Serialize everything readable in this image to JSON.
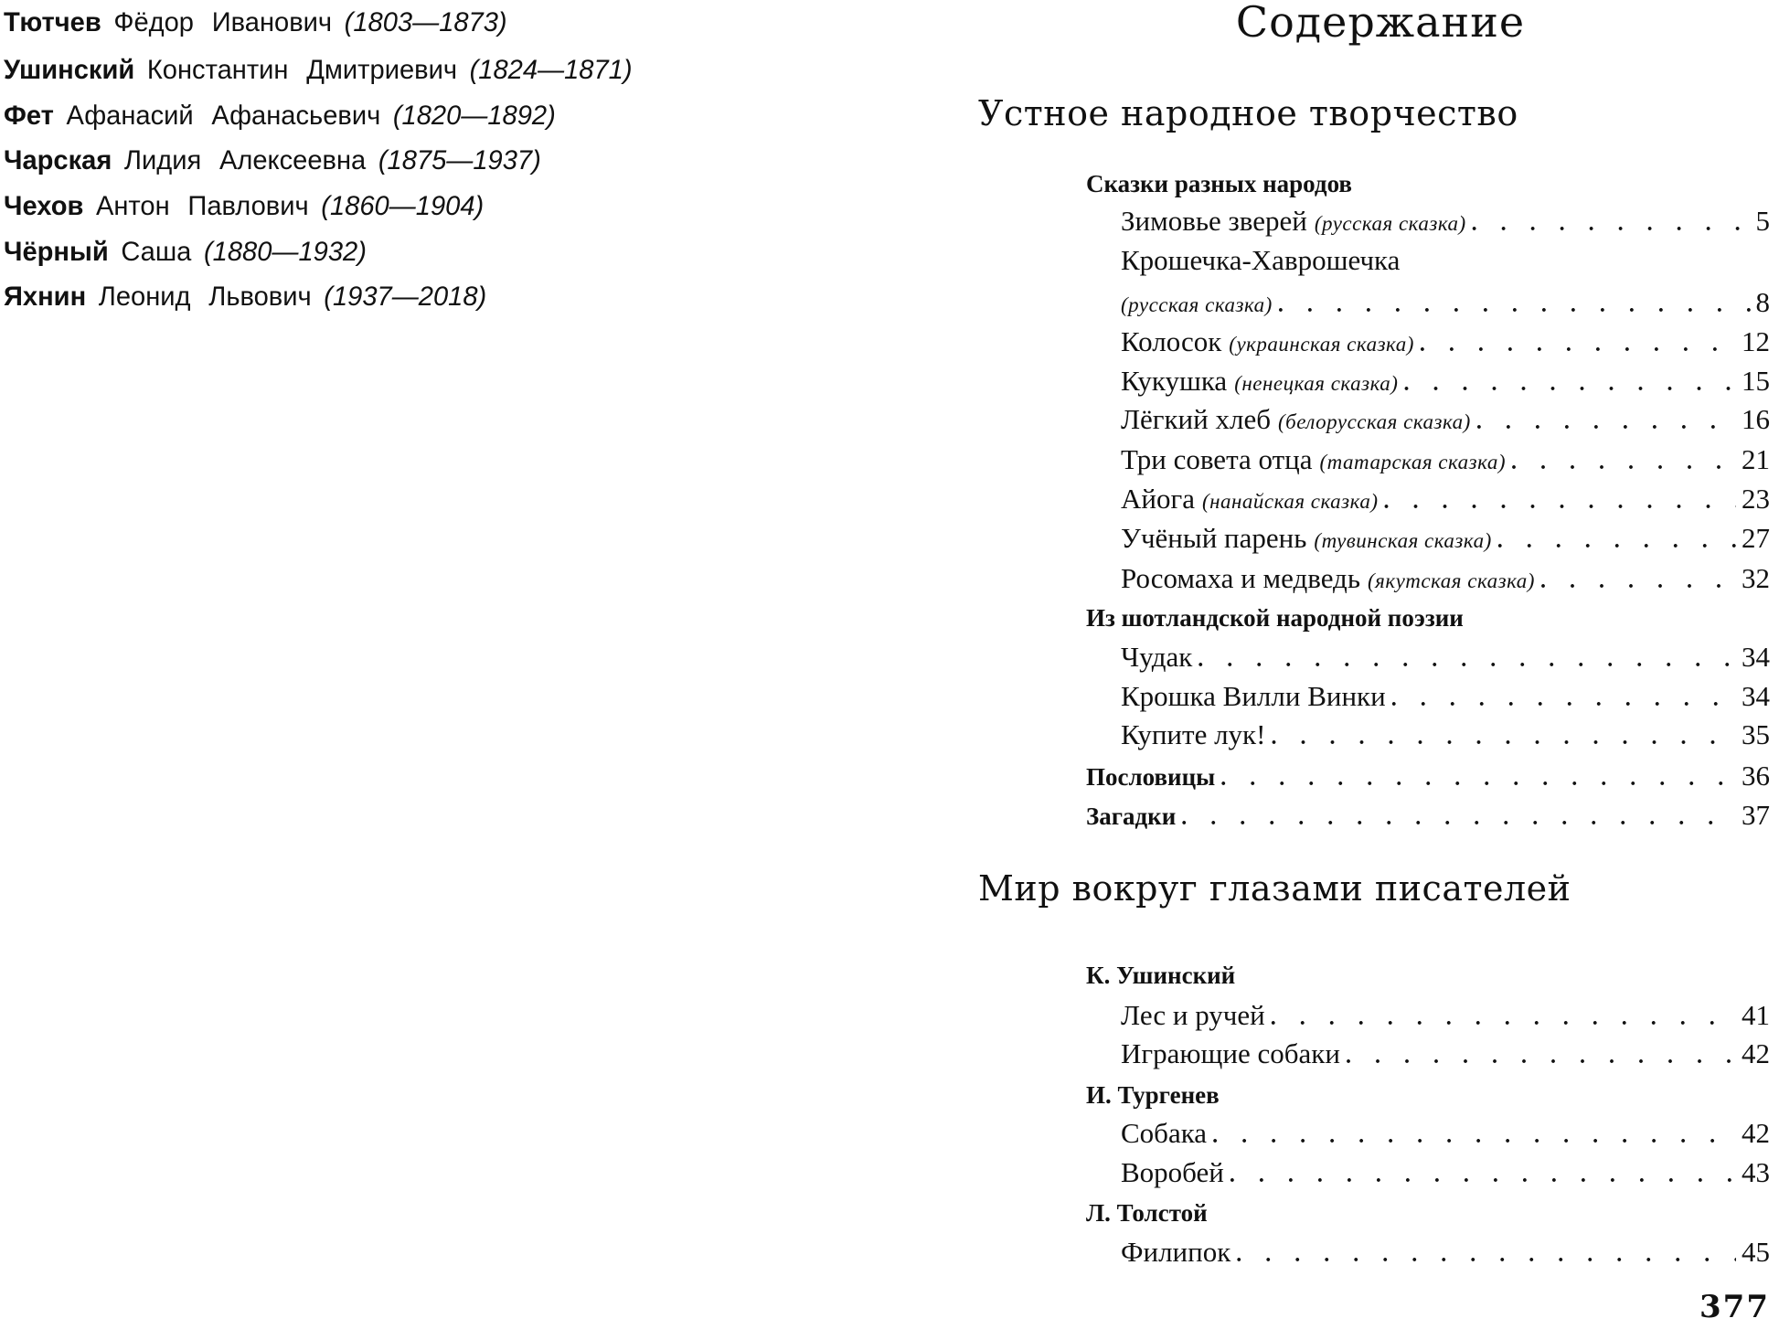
{
  "authors": [
    {
      "surname": "Тютчев",
      "name": "Фёдор Иванович",
      "years": "(1803—1873)"
    },
    {
      "surname": "Ушинский",
      "name": "Константин Дмитриевич",
      "years": "(1824—1871)"
    },
    {
      "surname": "Фет",
      "name": "Афанасий Афанасьевич",
      "years": "(1820—1892)"
    },
    {
      "surname": "Чарская",
      "name": "Лидия Алексеевна",
      "years": "(1875—1937)"
    },
    {
      "surname": "Чехов",
      "name": "Антон Павлович",
      "years": "(1860—1904)"
    },
    {
      "surname": "Чёрный",
      "name": "Саша",
      "years": "(1880—1932)"
    },
    {
      "surname": "Яхнин",
      "name": "Леонид Львович",
      "years": "(1937—2018)"
    }
  ],
  "toc": {
    "title": "Содержание",
    "sections": [
      {
        "title": "Устное народное творчество"
      },
      {
        "title": "Мир вокруг глазами писателей"
      }
    ],
    "lines": [
      {
        "type": "head",
        "title": "Сказки разных народов"
      },
      {
        "type": "item",
        "title": "Зимовье зверей",
        "note": "(русская сказка)",
        "page": "5"
      },
      {
        "type": "item",
        "title": "Крошечка-Хаврошечка"
      },
      {
        "type": "item",
        "title": "",
        "note": "(русская сказка)",
        "page": "8"
      },
      {
        "type": "item",
        "title": "Колосок",
        "note": "(украинская сказка)",
        "page": "12"
      },
      {
        "type": "item",
        "title": "Кукушка",
        "note": "(ненецкая сказка)",
        "page": "15"
      },
      {
        "type": "item",
        "title": "Лёгкий хлеб",
        "note": "(белорусская сказка)",
        "page": "16"
      },
      {
        "type": "item",
        "title": "Три совета отца",
        "note": "(татарская сказка)",
        "page": "21"
      },
      {
        "type": "item",
        "title": "Айога",
        "note": "(нанайская сказка)",
        "page": "23"
      },
      {
        "type": "item",
        "title": "Учёный парень",
        "note": "(тувинская сказка)",
        "page": "27"
      },
      {
        "type": "item",
        "title": "Росомаха и медведь",
        "note": "(якутская сказка)",
        "page": "32"
      },
      {
        "type": "head",
        "title": "Из шотландской народной поэзии"
      },
      {
        "type": "item",
        "title": "Чудак",
        "page": "34"
      },
      {
        "type": "item",
        "title": "Крошка Вилли Винки",
        "page": "34"
      },
      {
        "type": "item",
        "title": "Купите лук!",
        "page": "35"
      },
      {
        "type": "head",
        "title": "Пословицы",
        "page": "36"
      },
      {
        "type": "head",
        "title": "Загадки",
        "page": "37"
      },
      {
        "type": "head",
        "title": "К. Ушинский"
      },
      {
        "type": "item",
        "title": "Лес и ручей",
        "page": "41"
      },
      {
        "type": "item",
        "title": "Играющие собаки",
        "page": "42"
      },
      {
        "type": "head",
        "title": "И. Тургенев"
      },
      {
        "type": "item",
        "title": "Собака",
        "page": "42"
      },
      {
        "type": "item",
        "title": "Воробей",
        "page": "43"
      },
      {
        "type": "head",
        "title": "Л. Толстой"
      },
      {
        "type": "item",
        "title": "Филипок",
        "page": "45"
      }
    ]
  },
  "page_number": "377"
}
